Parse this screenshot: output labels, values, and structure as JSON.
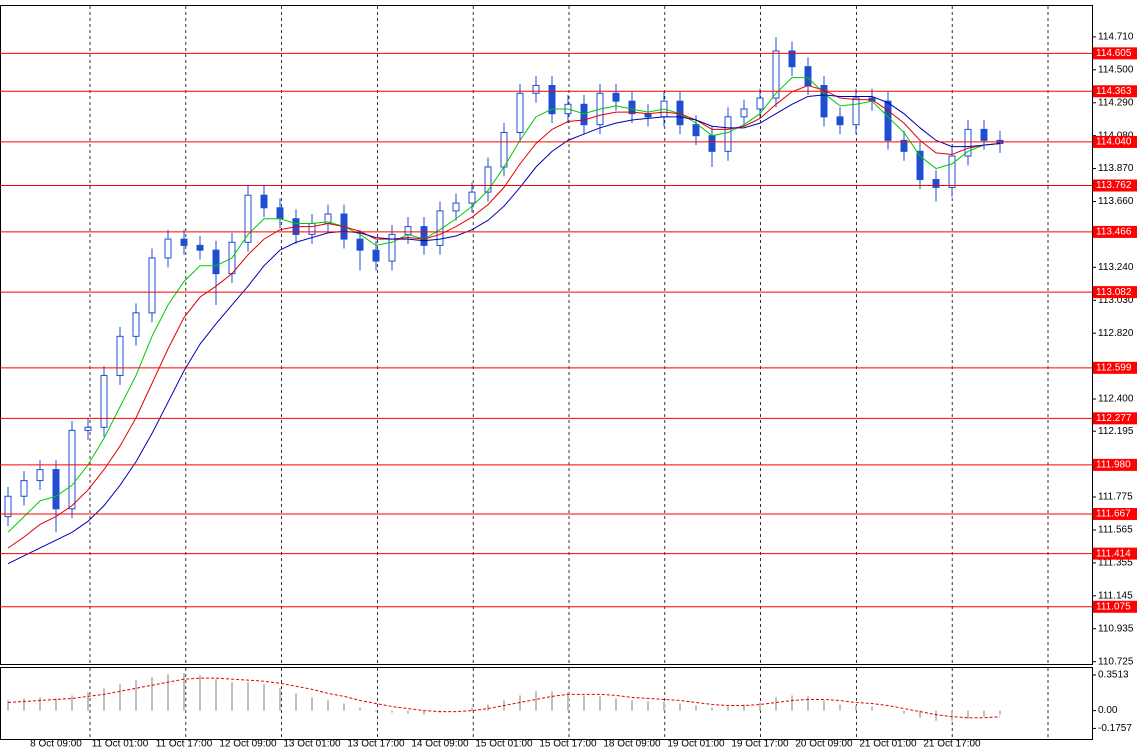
{
  "chart_data": [
    {
      "type": "candlestick",
      "color": "#1f4fd0",
      "x_tick_labels": [
        "8 Oct 09:00",
        "11 Oct 01:00",
        "11 Oct 17:00",
        "12 Oct 09:00",
        "13 Oct 01:00",
        "13 Oct 17:00",
        "14 Oct 09:00",
        "15 Oct 01:00",
        "15 Oct 17:00",
        "18 Oct 09:00",
        "19 Oct 01:00",
        "19 Oct 17:00",
        "20 Oct 09:00",
        "21 Oct 01:00",
        "21 Oct 17:00"
      ],
      "open": [
        111.65,
        111.78,
        111.88,
        111.95,
        111.7,
        112.2,
        112.22,
        112.55,
        112.8,
        112.95,
        113.3,
        113.42,
        113.38,
        113.35,
        113.2,
        113.4,
        113.7,
        113.62,
        113.55,
        113.45,
        113.52,
        113.58,
        113.42,
        113.35,
        113.28,
        113.45,
        113.5,
        113.38,
        113.6,
        113.65,
        113.72,
        113.88,
        114.1,
        114.35,
        114.4,
        114.22,
        114.28,
        114.15,
        114.35,
        114.3,
        114.22,
        114.2,
        114.3,
        114.15,
        114.08,
        113.98,
        114.2,
        114.25,
        114.32,
        114.62,
        114.52,
        114.4,
        114.2,
        114.15,
        114.32,
        114.3,
        114.05,
        113.98,
        113.8,
        113.75,
        113.95,
        114.12,
        114.05
      ],
      "high": [
        111.84,
        111.94,
        112.01,
        112.01,
        112.26,
        112.28,
        112.61,
        112.86,
        113.01,
        113.36,
        113.48,
        113.48,
        113.44,
        113.41,
        113.46,
        113.76,
        113.76,
        113.68,
        113.61,
        113.58,
        113.64,
        113.64,
        113.48,
        113.41,
        113.51,
        113.56,
        113.56,
        113.66,
        113.71,
        113.78,
        113.94,
        114.16,
        114.41,
        114.46,
        114.46,
        114.34,
        114.34,
        114.41,
        114.41,
        114.36,
        114.28,
        114.36,
        114.36,
        114.21,
        114.14,
        114.26,
        114.31,
        114.38,
        114.71,
        114.68,
        114.58,
        114.46,
        114.26,
        114.38,
        114.38,
        114.36,
        114.11,
        114.04,
        113.86,
        114.01,
        114.18,
        114.18,
        114.11
      ],
      "low": [
        111.59,
        111.72,
        111.82,
        111.55,
        111.64,
        112.14,
        112.16,
        112.49,
        112.74,
        112.89,
        113.24,
        113.32,
        113.29,
        113.0,
        113.14,
        113.34,
        113.56,
        113.49,
        113.39,
        113.39,
        113.46,
        113.36,
        113.22,
        113.22,
        113.22,
        113.39,
        113.32,
        113.32,
        113.54,
        113.59,
        113.66,
        113.82,
        114.04,
        114.29,
        114.16,
        114.16,
        114.09,
        114.09,
        114.24,
        114.16,
        114.14,
        114.14,
        114.09,
        114.02,
        113.88,
        113.92,
        114.14,
        114.19,
        114.26,
        114.46,
        114.34,
        114.14,
        114.09,
        114.09,
        114.24,
        113.99,
        113.92,
        113.74,
        113.66,
        113.69,
        113.89,
        113.99,
        113.97
      ],
      "close": [
        111.78,
        111.88,
        111.95,
        111.7,
        112.2,
        112.22,
        112.55,
        112.8,
        112.95,
        113.3,
        113.42,
        113.38,
        113.35,
        113.2,
        113.4,
        113.7,
        113.62,
        113.55,
        113.45,
        113.52,
        113.58,
        113.42,
        113.35,
        113.28,
        113.45,
        113.5,
        113.38,
        113.6,
        113.65,
        113.72,
        113.88,
        114.1,
        114.35,
        114.4,
        114.22,
        114.28,
        114.15,
        114.35,
        114.3,
        114.22,
        114.2,
        114.3,
        114.15,
        114.08,
        113.98,
        114.2,
        114.25,
        114.32,
        114.62,
        114.52,
        114.4,
        114.2,
        114.15,
        114.32,
        114.3,
        114.05,
        113.98,
        113.8,
        113.75,
        113.95,
        114.12,
        114.05,
        114.03
      ],
      "moving_averages": [
        {
          "color": "#00c800",
          "values": [
            111.55,
            111.65,
            111.75,
            111.78,
            111.85,
            111.98,
            112.15,
            112.35,
            112.55,
            112.8,
            113.0,
            113.15,
            113.25,
            113.25,
            113.3,
            113.45,
            113.55,
            113.55,
            113.52,
            113.52,
            113.53,
            113.5,
            113.45,
            113.38,
            113.4,
            113.45,
            113.42,
            113.48,
            113.55,
            113.63,
            113.73,
            113.88,
            114.05,
            114.2,
            114.25,
            114.25,
            114.22,
            114.25,
            114.27,
            114.25,
            114.23,
            114.25,
            114.22,
            114.16,
            114.08,
            114.1,
            114.15,
            114.22,
            114.35,
            114.45,
            114.45,
            114.35,
            114.27,
            114.28,
            114.3,
            114.2,
            114.1,
            113.95,
            113.87,
            113.9,
            113.98,
            114.02,
            114.03
          ]
        },
        {
          "color": "#e00000",
          "values": [
            111.45,
            111.52,
            111.6,
            111.65,
            111.72,
            111.82,
            111.95,
            112.1,
            112.28,
            112.5,
            112.72,
            112.92,
            113.05,
            113.12,
            113.2,
            113.32,
            113.42,
            113.48,
            113.5,
            113.5,
            113.52,
            113.5,
            113.47,
            113.42,
            113.42,
            113.43,
            113.42,
            113.45,
            113.5,
            113.56,
            113.64,
            113.75,
            113.9,
            114.03,
            114.12,
            114.17,
            114.18,
            114.21,
            114.23,
            114.23,
            114.22,
            114.23,
            114.22,
            114.18,
            114.12,
            114.12,
            114.14,
            114.19,
            114.28,
            114.36,
            114.4,
            114.37,
            114.32,
            114.31,
            114.31,
            114.24,
            114.16,
            114.05,
            113.97,
            113.96,
            114.0,
            114.02,
            114.03
          ]
        },
        {
          "color": "#0000b4",
          "values": [
            111.35,
            111.4,
            111.45,
            111.5,
            111.55,
            111.62,
            111.72,
            111.85,
            112.0,
            112.18,
            112.38,
            112.58,
            112.75,
            112.88,
            113.0,
            113.12,
            113.25,
            113.35,
            113.4,
            113.43,
            113.46,
            113.47,
            113.46,
            113.43,
            113.42,
            113.42,
            113.41,
            113.42,
            113.44,
            113.48,
            113.54,
            113.63,
            113.75,
            113.88,
            113.98,
            114.05,
            114.09,
            114.13,
            114.16,
            114.18,
            114.19,
            114.2,
            114.2,
            114.18,
            114.14,
            114.13,
            114.13,
            114.16,
            114.22,
            114.28,
            114.33,
            114.34,
            114.33,
            114.33,
            114.33,
            114.29,
            114.22,
            114.13,
            114.05,
            114.01,
            114.01,
            114.02,
            114.03
          ]
        }
      ],
      "levels": {
        "color": "#ff0000",
        "values": [
          114.605,
          114.363,
          114.04,
          113.762,
          113.466,
          113.082,
          112.599,
          112.277,
          111.98,
          111.667,
          111.414,
          111.075
        ],
        "value_labels": [
          "114.605",
          "114.363",
          "114.040",
          "113.762",
          "113.466",
          "113.082",
          "112.599",
          "112.277",
          "111.980",
          "111.667",
          "111.414",
          "111.075"
        ]
      },
      "ylim": [
        110.71,
        114.907
      ],
      "yticks": [
        {
          "value": 114.71,
          "label": "114.710"
        },
        {
          "value": 114.5,
          "label": "114.500"
        },
        {
          "value": 114.29,
          "label": "114.290"
        },
        {
          "value": 114.08,
          "label": "114.080"
        },
        {
          "value": 113.87,
          "label": "113.870"
        },
        {
          "value": 113.66,
          "label": "113.660"
        },
        {
          "value": 113.45,
          "label": "113.450"
        },
        {
          "value": 113.24,
          "label": "113.240"
        },
        {
          "value": 113.03,
          "label": "113.030"
        },
        {
          "value": 112.82,
          "label": "112.820"
        },
        {
          "value": 112.61,
          "label": "112.610"
        },
        {
          "value": 112.4,
          "label": "112.400"
        },
        112.195,
        111.985,
        111.775,
        111.565,
        111.355,
        111.145,
        110.935,
        110.725
      ]
    },
    {
      "type": "macd",
      "color": "#c0c0c0",
      "values": [
        0.1,
        0.12,
        0.13,
        0.12,
        0.15,
        0.18,
        0.22,
        0.26,
        0.3,
        0.33,
        0.36,
        0.37,
        0.35,
        0.31,
        0.28,
        0.28,
        0.26,
        0.22,
        0.17,
        0.13,
        0.1,
        0.07,
        0.03,
        -0.01,
        -0.02,
        -0.03,
        -0.04,
        -0.02,
        0.0,
        0.03,
        0.06,
        0.1,
        0.15,
        0.19,
        0.19,
        0.18,
        0.15,
        0.14,
        0.12,
        0.1,
        0.09,
        0.09,
        0.07,
        0.05,
        0.03,
        0.04,
        0.06,
        0.08,
        0.13,
        0.15,
        0.14,
        0.1,
        0.06,
        0.05,
        0.04,
        0.0,
        -0.03,
        -0.07,
        -0.1,
        -0.1,
        -0.08,
        -0.06,
        -0.04
      ],
      "signal": {
        "color": "#e00000",
        "values": [
          0.08,
          0.09,
          0.1,
          0.11,
          0.12,
          0.14,
          0.16,
          0.19,
          0.22,
          0.25,
          0.28,
          0.31,
          0.32,
          0.32,
          0.31,
          0.3,
          0.29,
          0.27,
          0.24,
          0.21,
          0.17,
          0.14,
          0.1,
          0.07,
          0.04,
          0.02,
          0.0,
          -0.01,
          -0.01,
          0.0,
          0.02,
          0.05,
          0.08,
          0.11,
          0.14,
          0.16,
          0.16,
          0.16,
          0.15,
          0.13,
          0.12,
          0.11,
          0.1,
          0.08,
          0.06,
          0.05,
          0.05,
          0.06,
          0.08,
          0.1,
          0.11,
          0.11,
          0.1,
          0.08,
          0.07,
          0.05,
          0.02,
          -0.01,
          -0.04,
          -0.06,
          -0.07,
          -0.07,
          -0.06
        ]
      },
      "ylim": [
        -0.28,
        0.42
      ],
      "yticks": [
        0.3513,
        {
          "value": 0,
          "label": "0.00"
        },
        -0.1757
      ]
    }
  ]
}
